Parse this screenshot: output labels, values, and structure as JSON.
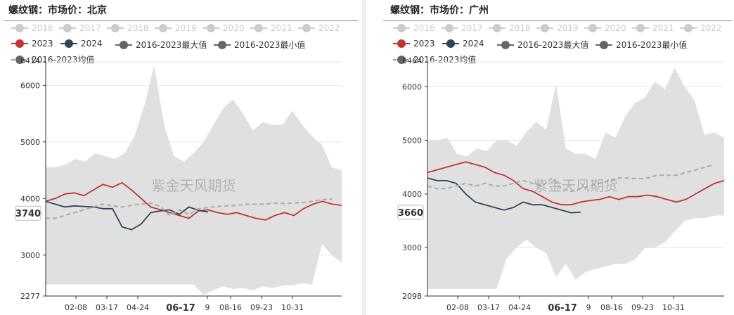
{
  "chart_data": [
    {
      "type": "line",
      "title": "螺纹钢：市场价：北京",
      "y_axis": {
        "min": 2277,
        "max": 6414,
        "ticks": [
          2277,
          3000,
          4000,
          5000,
          6000,
          6414
        ]
      },
      "x_ticks": [
        "02-08",
        "03-17",
        "04-24",
        "06-17",
        "08-16",
        "09-23",
        "10-31"
      ],
      "x_tick_hidden": "9",
      "cursor": {
        "x_label": "06-17",
        "y_label": "3740"
      },
      "watermark": "紫金天风期货",
      "legend_inactive": [
        "2016",
        "2017",
        "2018",
        "2019",
        "2020",
        "2021",
        "2022"
      ],
      "legend_active": [
        "2023",
        "2024",
        "2016-2023最大值",
        "2016-2023最小值",
        "2016-2023均值"
      ],
      "band_max": [
        4550,
        4550,
        4600,
        4700,
        4650,
        4800,
        4750,
        4700,
        4800,
        5100,
        5650,
        6350,
        5300,
        4750,
        4650,
        4800,
        5000,
        5300,
        5600,
        5750,
        5500,
        5200,
        5350,
        5300,
        5300,
        5550,
        5300,
        5100,
        4950,
        4550,
        4500
      ],
      "band_min": [
        2480,
        2480,
        2480,
        2480,
        2480,
        2480,
        2480,
        2480,
        2480,
        2480,
        2480,
        2480,
        2480,
        2480,
        2480,
        2480,
        2300,
        2380,
        2450,
        2400,
        2420,
        2380,
        2450,
        2420,
        2460,
        2470,
        2500,
        2480,
        3200,
        3000,
        2870
      ],
      "series": [
        {
          "name": "2023",
          "color": "#c23531",
          "values": [
            3950,
            4000,
            4080,
            4100,
            4050,
            4150,
            4250,
            4200,
            4280,
            4150,
            4000,
            3850,
            3800,
            3750,
            3700,
            3650,
            3780,
            3800,
            3750,
            3720,
            3750,
            3700,
            3650,
            3620,
            3700,
            3750,
            3700,
            3820,
            3900,
            3950,
            3900,
            3880
          ]
        },
        {
          "name": "2024",
          "color": "#2f4554",
          "values": [
            3950,
            3900,
            3850,
            3870,
            3860,
            3850,
            3820,
            3820,
            3500,
            3450,
            3550,
            3750,
            3780,
            3800,
            3720,
            3850,
            3790,
            3760
          ]
        },
        {
          "name": "2016-2023均值",
          "color": "#aaaaaa",
          "dashed": true,
          "values": [
            3650,
            3650,
            3700,
            3750,
            3800,
            3850,
            3900,
            3870,
            3850,
            3880,
            3900,
            3920,
            3860,
            3700,
            3800,
            3720,
            3820,
            3840,
            3860,
            3870,
            3880,
            3900,
            3900,
            3900,
            3920,
            3910,
            3920,
            3930,
            3950,
            3980,
            3990
          ]
        }
      ]
    },
    {
      "type": "line",
      "title": "螺纹钢：市场价：广州",
      "y_axis": {
        "min": 2098,
        "max": 6464,
        "ticks": [
          2098,
          3000,
          4000,
          5000,
          6000,
          6464
        ]
      },
      "x_ticks": [
        "02-08",
        "03-17",
        "04-24",
        "06-17",
        "08-16",
        "09-23",
        "10-31"
      ],
      "x_tick_hidden": "9",
      "cursor": {
        "x_label": "06-17",
        "y_label": "3660"
      },
      "watermark": "紫金天风期货",
      "legend_inactive": [
        "2016",
        "2017",
        "2018",
        "2019",
        "2020",
        "2021",
        "2022"
      ],
      "legend_active": [
        "2023",
        "2024",
        "2016-2023最大值",
        "2016-2023最小值",
        "2016-2023均值"
      ],
      "band_max": [
        5000,
        5000,
        5050,
        4750,
        4700,
        4850,
        4800,
        5000,
        5000,
        4900,
        5150,
        5350,
        5200,
        6050,
        4850,
        4750,
        4750,
        4650,
        5150,
        5050,
        5450,
        5700,
        5800,
        6100,
        5950,
        6350,
        6000,
        5750,
        5100,
        5150,
        5050
      ],
      "band_min": [
        2230,
        2230,
        2230,
        2230,
        2230,
        2230,
        2230,
        2230,
        2800,
        3000,
        3150,
        3000,
        2900,
        2450,
        2700,
        2400,
        2550,
        2600,
        2650,
        2700,
        2700,
        2780,
        3000,
        3000,
        3100,
        3300,
        3500,
        3550,
        3550,
        3600,
        3600
      ],
      "series": [
        {
          "name": "2023",
          "color": "#c23531",
          "values": [
            4400,
            4450,
            4500,
            4550,
            4600,
            4550,
            4500,
            4400,
            4350,
            4250,
            4100,
            4050,
            3950,
            3850,
            3800,
            3800,
            3850,
            3880,
            3900,
            3950,
            3900,
            3950,
            3950,
            3980,
            3950,
            3900,
            3850,
            3900,
            4000,
            4100,
            4200,
            4250
          ]
        },
        {
          "name": "2024",
          "color": "#2f4554",
          "values": [
            4300,
            4250,
            4250,
            4200,
            4000,
            3850,
            3800,
            3750,
            3700,
            3750,
            3850,
            3800,
            3800,
            3750,
            3700,
            3650,
            3660
          ]
        },
        {
          "name": "2016-2023均值",
          "color": "#aaaaaa",
          "dashed": true,
          "values": [
            4150,
            4100,
            4100,
            4150,
            4200,
            4150,
            4200,
            4150,
            4150,
            4200,
            4250,
            4200,
            4150,
            4300,
            4100,
            4050,
            4100,
            4150,
            4200,
            4250,
            4300,
            4300,
            4280,
            4300,
            4350,
            4350,
            4350,
            4400,
            4450,
            4500,
            4550
          ]
        }
      ]
    }
  ]
}
